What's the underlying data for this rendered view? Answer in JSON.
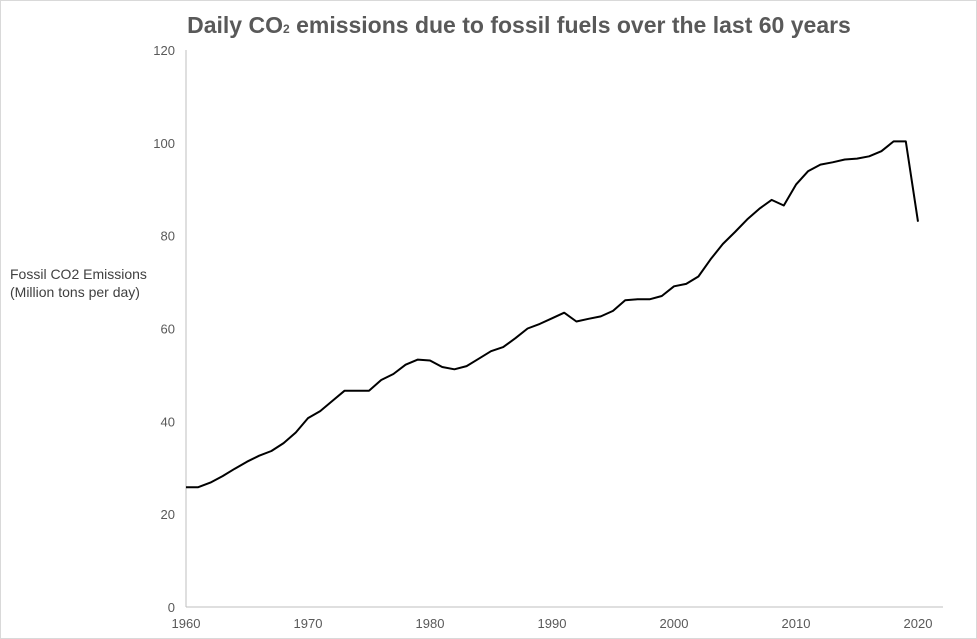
{
  "chart_data": {
    "type": "line",
    "title_prefix": "Daily CO",
    "title_subscript": "2",
    "title_suffix": " emissions due to fossil fuels over the last 60 years",
    "xlabel": "",
    "ylabel_line1": "Fossil CO2 Emissions",
    "ylabel_line2": "(Million tons per day)",
    "xlim": [
      1960,
      2020
    ],
    "ylim": [
      0,
      120
    ],
    "x_ticks": [
      1960,
      1970,
      1980,
      1990,
      2000,
      2010,
      2020
    ],
    "y_ticks": [
      0,
      20,
      40,
      60,
      80,
      100,
      120
    ],
    "grid": false,
    "line_color": "#000000",
    "series": [
      {
        "x": [
          1960,
          1961,
          1962,
          1963,
          1964,
          1965,
          1966,
          1967,
          1968,
          1969,
          1970,
          1971,
          1972,
          1973,
          1974,
          1975,
          1976,
          1977,
          1978,
          1979,
          1980,
          1981,
          1982,
          1983,
          1984,
          1985,
          1986,
          1987,
          1988,
          1989,
          1990,
          1991,
          1992,
          1993,
          1994,
          1995,
          1996,
          1997,
          1998,
          1999,
          2000,
          2001,
          2002,
          2003,
          2004,
          2005,
          2006,
          2007,
          2008,
          2009,
          2010,
          2011,
          2012,
          2013,
          2014,
          2015,
          2016,
          2017,
          2018,
          2019,
          2020
        ],
        "values": [
          25.8,
          25.8,
          26.8,
          28.2,
          29.8,
          31.3,
          32.6,
          33.6,
          35.3,
          37.6,
          40.7,
          42.2,
          44.4,
          46.6,
          46.6,
          46.6,
          48.9,
          50.2,
          52.2,
          53.3,
          53.1,
          51.7,
          51.2,
          51.9,
          53.5,
          55.1,
          56.0,
          57.9,
          60.0,
          61.0,
          62.2,
          63.4,
          61.5,
          62.1,
          62.6,
          63.8,
          66.1,
          66.3,
          66.3,
          67.0,
          69.1,
          69.6,
          71.2,
          74.9,
          78.2,
          80.8,
          83.5,
          85.8,
          87.7,
          86.5,
          91.0,
          93.9,
          95.3,
          95.8,
          96.4,
          96.6,
          97.1,
          98.2,
          100.3,
          100.3,
          83.0
        ]
      }
    ]
  }
}
